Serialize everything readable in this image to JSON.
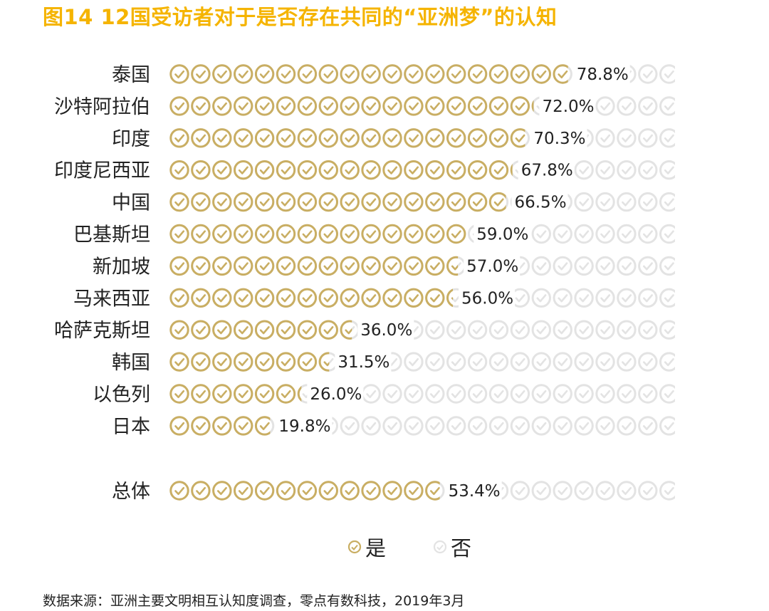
{
  "title": "图14 12国受访者对于是否存在共同的“亚洲梦”的认知",
  "colors": {
    "title": "#F5B400",
    "yes": "#C9AE63",
    "no": "#E3E3E3",
    "text": "#222222"
  },
  "legend": {
    "yes_label": "是",
    "no_label": "否",
    "yes_icon": "check-circle-gold-icon",
    "no_icon": "check-circle-gray-icon"
  },
  "source": "数据来源：亚洲主要文明相互认知度调查，零点有数科技，2019年3月",
  "chart_data": {
    "type": "bar",
    "subtype": "pictogram",
    "unit": "%",
    "total": 100,
    "categories": [
      "泰国",
      "沙特阿拉伯",
      "印度",
      "印度尼西亚",
      "中国",
      "巴基斯坦",
      "新加坡",
      "马来西亚",
      "哈萨克斯坦",
      "韩国",
      "以色列",
      "日本",
      "总体"
    ],
    "series": [
      {
        "name": "是",
        "values": [
          78.8,
          72.0,
          70.3,
          67.8,
          66.5,
          59.0,
          57.0,
          56.0,
          36.0,
          31.5,
          26.0,
          19.8,
          53.4
        ]
      }
    ],
    "labels": [
      "78.8%",
      "72.0%",
      "70.3%",
      "67.8%",
      "66.5%",
      "59.0%",
      "57.0%",
      "56.0%",
      "36.0%",
      "31.5%",
      "26.0%",
      "19.8%",
      "53.4%"
    ]
  }
}
